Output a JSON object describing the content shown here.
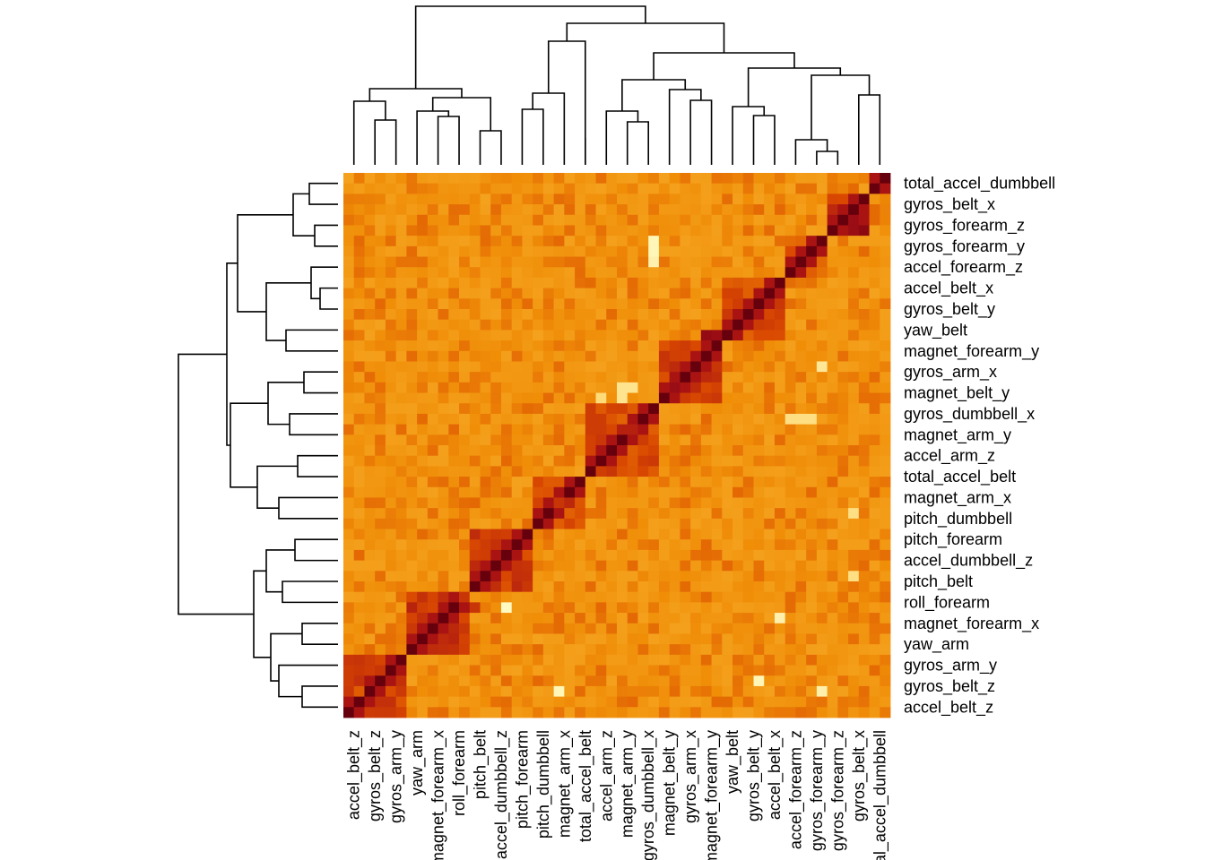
{
  "chart_data": {
    "type": "heatmap",
    "title": "",
    "xlabel": "",
    "ylabel": "",
    "grid": false,
    "legend": "none",
    "dendrograms": [
      "top",
      "left"
    ],
    "colormap": [
      "#ffffcc",
      "#fed976",
      "#f4a01c",
      "#f08e08",
      "#d94801",
      "#a50f15",
      "#67000d"
    ],
    "value_range": [
      0,
      1
    ],
    "x_tick_labels": [
      "accel_belt_z",
      "gyros_belt_z",
      "gyros_arm_y",
      "yaw_arm",
      "magnet_forearm_x",
      "roll_forearm",
      "pitch_belt",
      "accel_dumbbell_z",
      "pitch_forearm",
      "pitch_dumbbell",
      "magnet_arm_x",
      "total_accel_belt",
      "accel_arm_z",
      "magnet_arm_y",
      "gyros_dumbbell_x",
      "magnet_belt_y",
      "gyros_arm_x",
      "magnet_forearm_y",
      "yaw_belt",
      "gyros_belt_y",
      "accel_belt_x",
      "accel_forearm_z",
      "gyros_forearm_y",
      "gyros_forearm_z",
      "gyros_belt_x",
      "total_accel_dumbbell"
    ],
    "y_tick_labels": [
      "total_accel_dumbbell",
      "gyros_belt_x",
      "gyros_forearm_z",
      "gyros_forearm_y",
      "accel_forearm_z",
      "accel_belt_x",
      "gyros_belt_y",
      "yaw_belt",
      "magnet_forearm_y",
      "gyros_arm_x",
      "magnet_belt_y",
      "gyros_dumbbell_x",
      "magnet_arm_y",
      "accel_arm_z",
      "total_accel_belt",
      "magnet_arm_x",
      "pitch_dumbbell",
      "pitch_forearm",
      "accel_dumbbell_z",
      "pitch_belt",
      "roll_forearm",
      "magnet_forearm_x",
      "yaw_arm",
      "gyros_arm_y",
      "gyros_belt_z",
      "accel_belt_z"
    ],
    "columns": 52,
    "rows": 52,
    "cluster_blocks": [
      {
        "from": 0,
        "to": 5,
        "within": 0.68
      },
      {
        "from": 6,
        "to": 11,
        "within": 0.72
      },
      {
        "from": 12,
        "to": 17,
        "within": 0.7
      },
      {
        "from": 18,
        "to": 22,
        "within": 0.66
      },
      {
        "from": 23,
        "to": 29,
        "within": 0.66
      },
      {
        "from": 30,
        "to": 35,
        "within": 0.7
      },
      {
        "from": 36,
        "to": 41,
        "within": 0.66
      },
      {
        "from": 42,
        "to": 45,
        "within": 0.62
      },
      {
        "from": 46,
        "to": 49,
        "within": 0.7
      },
      {
        "from": 50,
        "to": 51,
        "within": 0.68
      }
    ],
    "highlight_pairs": [
      {
        "col": 48,
        "row": 4,
        "value": 0.86
      },
      {
        "col": 48,
        "row": 5,
        "value": 0.86
      },
      {
        "col": 49,
        "row": 5,
        "value": 0.9
      },
      {
        "col": 49,
        "row": 4,
        "value": 0.82
      },
      {
        "col": 34,
        "row": 15,
        "value": 0.88
      },
      {
        "col": 35,
        "row": 15,
        "value": 0.86
      },
      {
        "col": 30,
        "row": 20,
        "value": 0.82
      },
      {
        "col": 31,
        "row": 20,
        "value": 0.86
      },
      {
        "col": 26,
        "row": 24,
        "value": 0.78
      },
      {
        "col": 27,
        "row": 24,
        "value": 0.78
      },
      {
        "col": 24,
        "row": 28,
        "value": 0.7
      },
      {
        "col": 25,
        "row": 28,
        "value": 0.72
      },
      {
        "col": 21,
        "row": 31,
        "value": 0.76
      },
      {
        "col": 20,
        "row": 31,
        "value": 0.72
      },
      {
        "col": 11,
        "row": 40,
        "value": 0.72
      },
      {
        "col": 12,
        "row": 41,
        "value": 0.72
      },
      {
        "col": 3,
        "row": 47,
        "value": 0.72
      },
      {
        "col": 1,
        "row": 49,
        "value": 0.62
      }
    ],
    "pale_cells": [
      {
        "col": 15,
        "row": 41,
        "value": 0.02
      },
      {
        "col": 20,
        "row": 49,
        "value": 0.04
      },
      {
        "col": 29,
        "row": 6,
        "value": 0.04
      },
      {
        "col": 29,
        "row": 7,
        "value": 0.04
      },
      {
        "col": 29,
        "row": 8,
        "value": 0.06
      },
      {
        "col": 45,
        "row": 49,
        "value": 0.06
      },
      {
        "col": 39,
        "row": 48,
        "value": 0.04
      },
      {
        "col": 41,
        "row": 42,
        "value": 0.06
      },
      {
        "col": 26,
        "row": 20,
        "value": 0.12
      },
      {
        "col": 27,
        "row": 20,
        "value": 0.12
      },
      {
        "col": 26,
        "row": 21,
        "value": 0.12
      },
      {
        "col": 24,
        "row": 21,
        "value": 0.16
      },
      {
        "col": 42,
        "row": 23,
        "value": 0.14
      },
      {
        "col": 43,
        "row": 23,
        "value": 0.14
      },
      {
        "col": 44,
        "row": 23,
        "value": 0.14
      },
      {
        "col": 48,
        "row": 32,
        "value": 0.14
      },
      {
        "col": 48,
        "row": 38,
        "value": 0.14
      },
      {
        "col": 45,
        "row": 18,
        "value": 0.1
      }
    ]
  }
}
